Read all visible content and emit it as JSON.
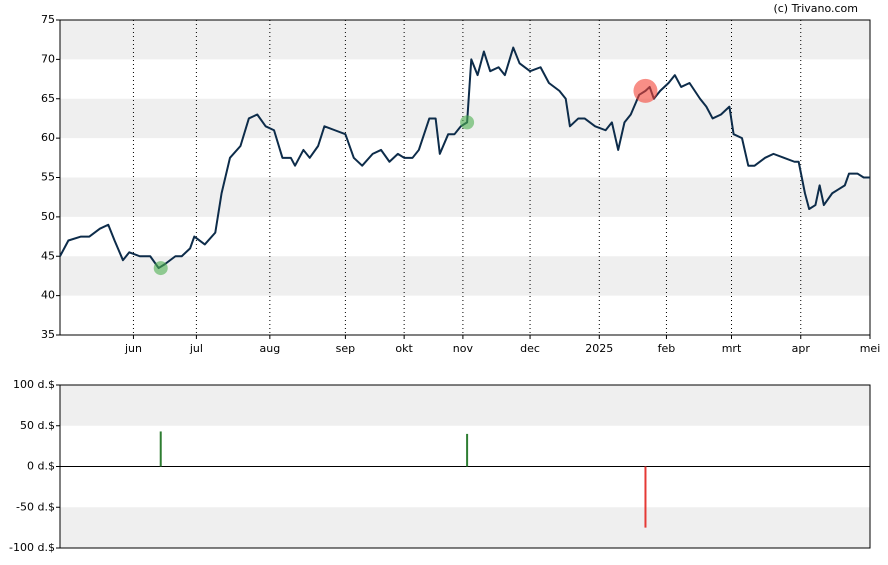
{
  "watermark": "(c) Trivano.com",
  "chart_data": [
    {
      "type": "line",
      "x": [
        0,
        4,
        10,
        14,
        19,
        23,
        26,
        30,
        33,
        38,
        43,
        47,
        50,
        55,
        58,
        62,
        64,
        69,
        74,
        77,
        81,
        86,
        90,
        94,
        98,
        102,
        106,
        110,
        112,
        116,
        119,
        123,
        126,
        131,
        136,
        140,
        144,
        149,
        153,
        157,
        161,
        164,
        168,
        171,
        176,
        179,
        181,
        185,
        188,
        191,
        194,
        196,
        199,
        202,
        205,
        209,
        212,
        216,
        219,
        224,
        229,
        233,
        238,
        241,
        243,
        247,
        250,
        255,
        260,
        263,
        266,
        269,
        272,
        276,
        279,
        281,
        283,
        286,
        290,
        293,
        296,
        300,
        305,
        308,
        311,
        315,
        319,
        321,
        325,
        328,
        331,
        336,
        340,
        345,
        350,
        352,
        355,
        357,
        360,
        362,
        364,
        368,
        371,
        374,
        376,
        380,
        383,
        386
      ],
      "series": [
        {
          "color": "#0d2c4a",
          "values": [
            45,
            47,
            47.5,
            47.5,
            48.5,
            49,
            47,
            44.5,
            45.5,
            45,
            45,
            43.5,
            44,
            45,
            45,
            46,
            47.5,
            46.5,
            48,
            53,
            57.5,
            59,
            62.5,
            63,
            61.5,
            61,
            57.5,
            57.5,
            56.5,
            58.5,
            57.5,
            59,
            61.5,
            61,
            60.5,
            57.5,
            56.5,
            58,
            58.5,
            57,
            58,
            57.5,
            57.5,
            58.5,
            62.5,
            62.5,
            58,
            60.5,
            60.5,
            61.5,
            62,
            70,
            68,
            71,
            68.5,
            69,
            68,
            71.5,
            69.5,
            68.5,
            69,
            67,
            66,
            65,
            61.5,
            62.5,
            62.5,
            61.5,
            61,
            62,
            58.5,
            62,
            63,
            65.5,
            66,
            66.5,
            65,
            66,
            67,
            68,
            66.5,
            67,
            65,
            64,
            62.5,
            63,
            64,
            60.5,
            60,
            56.5,
            56.5,
            57.5,
            58,
            57.5,
            57,
            57,
            53,
            51,
            51.5,
            54,
            51.5,
            53,
            53.5,
            54,
            55.5,
            55.5,
            55,
            55
          ]
        }
      ],
      "markers": [
        {
          "x": 48,
          "y": 43.5,
          "color": "#4caf50",
          "size": 7
        },
        {
          "x": 194,
          "y": 62,
          "color": "#4caf50",
          "size": 7
        },
        {
          "x": 279,
          "y": 66,
          "color": "#f44336",
          "size": 12
        }
      ],
      "xlim": [
        0,
        386
      ],
      "xticks": [
        {
          "value": 35,
          "label": "jun"
        },
        {
          "value": 65,
          "label": "jul"
        },
        {
          "value": 100,
          "label": "aug"
        },
        {
          "value": 136,
          "label": "sep"
        },
        {
          "value": 164,
          "label": "okt"
        },
        {
          "value": 192,
          "label": "nov"
        },
        {
          "value": 224,
          "label": "dec"
        },
        {
          "value": 257,
          "label": "2025"
        },
        {
          "value": 289,
          "label": "feb"
        },
        {
          "value": 320,
          "label": "mrt"
        },
        {
          "value": 353,
          "label": "apr"
        },
        {
          "value": 386,
          "label": "mei"
        }
      ],
      "ylim": [
        35,
        75
      ],
      "yticks": [
        35,
        40,
        45,
        50,
        55,
        60,
        65,
        70,
        75
      ],
      "bands": [
        [
          70,
          75
        ],
        [
          60,
          65
        ],
        [
          50,
          55
        ],
        [
          40,
          45
        ]
      ],
      "grid": true
    },
    {
      "type": "bar",
      "x": [
        48,
        194,
        279
      ],
      "values": [
        43,
        40,
        -75
      ],
      "colors": [
        "#2e7d32",
        "#2e7d32",
        "#e53935"
      ],
      "xlim": [
        0,
        386
      ],
      "ylim": [
        -100,
        100
      ],
      "yticks": [
        {
          "value": -100,
          "label": "-100 d.$"
        },
        {
          "value": -50,
          "label": "-50 d.$"
        },
        {
          "value": 0,
          "label": "0 d.$"
        },
        {
          "value": 50,
          "label": "50 d.$"
        },
        {
          "value": 100,
          "label": "100 d.$"
        }
      ],
      "bands": [
        [
          50,
          100
        ],
        [
          -100,
          -50
        ]
      ]
    }
  ]
}
